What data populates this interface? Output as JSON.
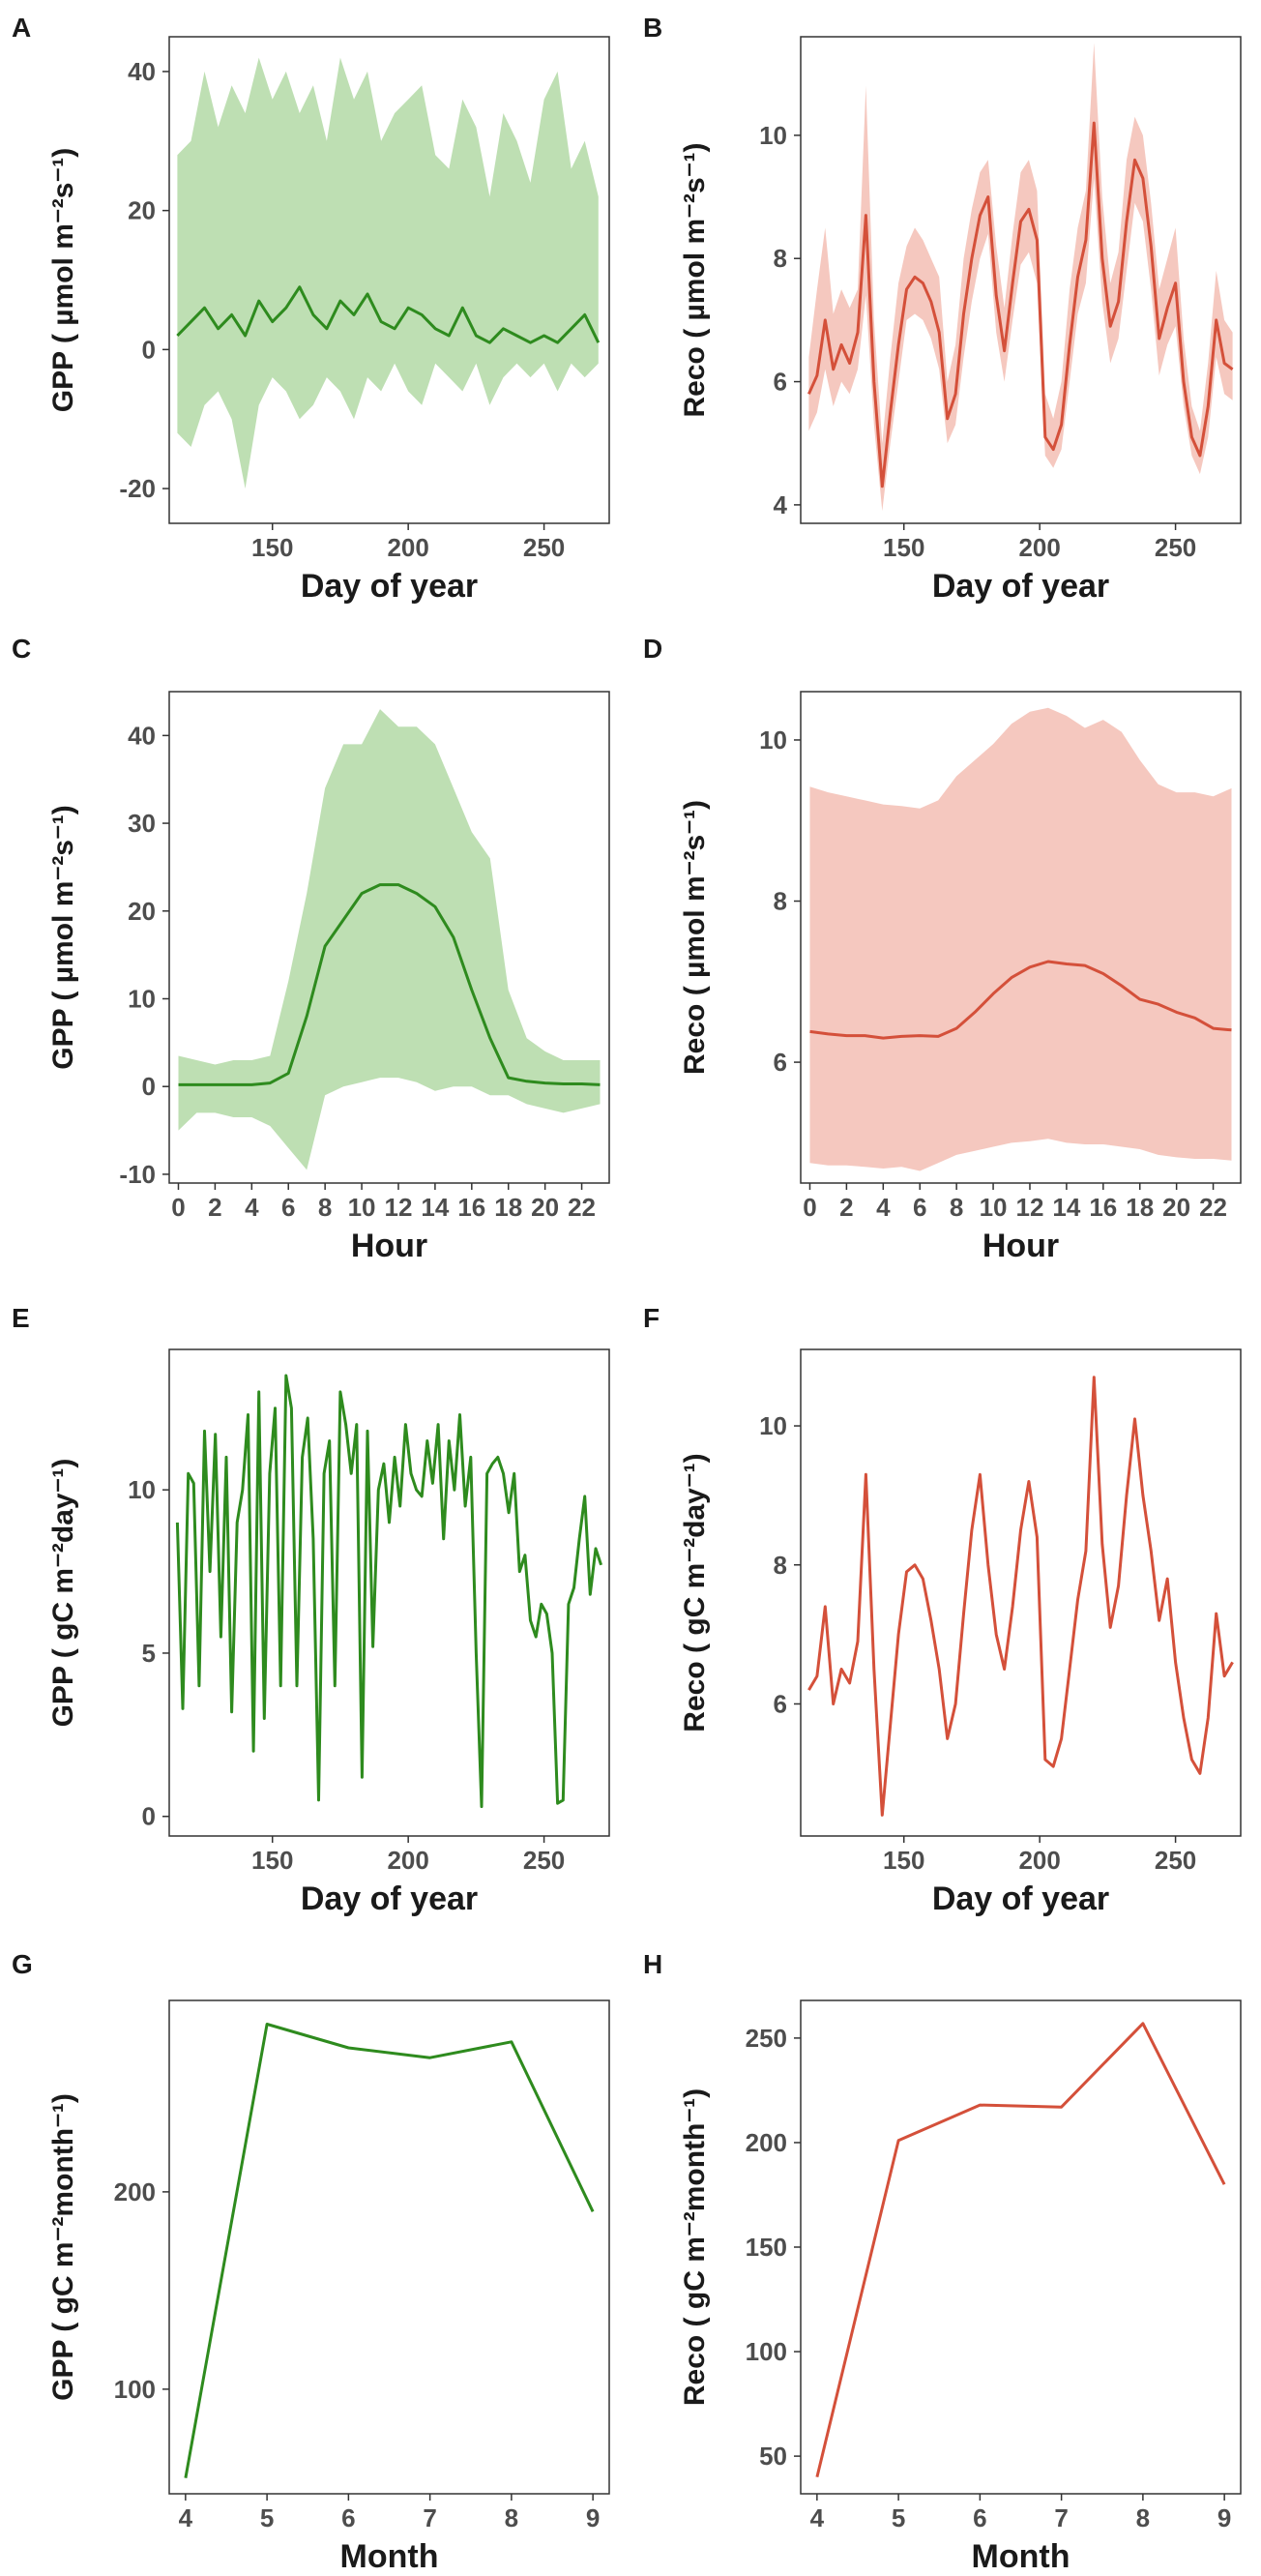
{
  "colors": {
    "gpp": "#2e8b1e",
    "gpp_band": "#a8d49a",
    "reco": "#d4503a",
    "reco_band": "#f2b6aa"
  },
  "chart_data": [
    {
      "panel": "A",
      "type": "line",
      "xlabel": "Day of year",
      "ylabel": "GPP ( µmol m⁻²s⁻¹)",
      "xlim": [
        112,
        274
      ],
      "ylim": [
        -25,
        45
      ],
      "xticks": [
        150,
        200,
        250
      ],
      "yticks": [
        -20,
        0,
        20,
        40
      ],
      "series_color": "gpp",
      "band_color": "gpp_band",
      "x": [
        115,
        120,
        125,
        130,
        135,
        140,
        145,
        150,
        155,
        160,
        165,
        170,
        175,
        180,
        185,
        190,
        195,
        200,
        205,
        210,
        215,
        220,
        225,
        230,
        235,
        240,
        245,
        250,
        255,
        260,
        265,
        270
      ],
      "y": [
        2,
        4,
        6,
        3,
        5,
        2,
        7,
        4,
        6,
        9,
        5,
        3,
        7,
        5,
        8,
        4,
        3,
        6,
        5,
        3,
        2,
        6,
        2,
        1,
        3,
        2,
        1,
        2,
        1,
        3,
        5,
        1
      ],
      "band_upper": [
        28,
        30,
        40,
        32,
        38,
        34,
        42,
        36,
        40,
        34,
        38,
        30,
        42,
        36,
        40,
        30,
        34,
        36,
        38,
        28,
        26,
        36,
        32,
        22,
        34,
        30,
        24,
        36,
        40,
        26,
        30,
        22
      ],
      "band_lower": [
        -12,
        -14,
        -8,
        -6,
        -10,
        -20,
        -8,
        -4,
        -6,
        -10,
        -8,
        -4,
        -6,
        -10,
        -4,
        -6,
        -2,
        -6,
        -8,
        -2,
        -4,
        -6,
        -2,
        -8,
        -4,
        -2,
        -4,
        -2,
        -6,
        -2,
        -4,
        -2
      ]
    },
    {
      "panel": "B",
      "type": "line",
      "xlabel": "Day of year",
      "ylabel": "Reco ( µmol m⁻²s⁻¹)",
      "xlim": [
        112,
        274
      ],
      "ylim": [
        3.7,
        11.6
      ],
      "xticks": [
        150,
        200,
        250
      ],
      "yticks": [
        4,
        6,
        8,
        10
      ],
      "series_color": "reco",
      "band_color": "reco_band",
      "x": [
        115,
        118,
        121,
        124,
        127,
        130,
        133,
        136,
        139,
        142,
        145,
        148,
        151,
        154,
        157,
        160,
        163,
        166,
        169,
        172,
        175,
        178,
        181,
        184,
        187,
        190,
        193,
        196,
        199,
        202,
        205,
        208,
        211,
        214,
        217,
        220,
        223,
        226,
        229,
        232,
        235,
        238,
        241,
        244,
        247,
        250,
        253,
        256,
        259,
        262,
        265,
        268,
        271
      ],
      "y": [
        5.8,
        6.1,
        7.0,
        6.2,
        6.6,
        6.3,
        6.8,
        8.7,
        6.0,
        4.3,
        5.5,
        6.6,
        7.5,
        7.7,
        7.6,
        7.3,
        6.8,
        5.4,
        5.8,
        7.1,
        8.0,
        8.7,
        9.0,
        7.4,
        6.5,
        7.6,
        8.6,
        8.8,
        8.3,
        5.1,
        4.9,
        5.3,
        6.6,
        7.7,
        8.3,
        10.2,
        8.0,
        6.9,
        7.3,
        8.6,
        9.6,
        9.3,
        8.2,
        6.7,
        7.2,
        7.6,
        6.0,
        5.1,
        4.8,
        5.6,
        7.0,
        6.3,
        6.2
      ],
      "band_upper": [
        6.4,
        7.5,
        8.5,
        7.1,
        7.5,
        7.2,
        7.5,
        10.8,
        7.0,
        5.0,
        6.4,
        7.6,
        8.2,
        8.5,
        8.3,
        8.0,
        7.7,
        6.0,
        6.6,
        8.0,
        8.8,
        9.4,
        9.6,
        8.2,
        7.2,
        8.4,
        9.4,
        9.6,
        9.1,
        5.8,
        5.4,
        6.0,
        7.5,
        8.5,
        9.1,
        11.5,
        9.0,
        7.6,
        8.1,
        9.6,
        10.3,
        10.0,
        8.9,
        7.5,
        8.0,
        8.5,
        6.7,
        5.6,
        5.2,
        6.3,
        7.8,
        7.0,
        6.8
      ],
      "band_lower": [
        5.2,
        5.5,
        6.2,
        5.6,
        6.0,
        5.8,
        6.2,
        7.4,
        5.3,
        3.9,
        5.0,
        6.0,
        7.0,
        7.1,
        7.0,
        6.7,
        6.2,
        5.0,
        5.3,
        6.4,
        7.3,
        8.0,
        8.4,
        6.8,
        6.0,
        7.0,
        7.9,
        8.1,
        7.6,
        4.8,
        4.6,
        4.9,
        6.0,
        7.1,
        7.6,
        9.3,
        7.3,
        6.3,
        6.7,
        7.8,
        8.9,
        8.6,
        7.5,
        6.1,
        6.6,
        6.9,
        5.6,
        4.8,
        4.5,
        5.1,
        6.4,
        5.8,
        5.7
      ]
    },
    {
      "panel": "C",
      "type": "line",
      "xlabel": "Hour",
      "ylabel": "GPP ( µmol m⁻²s⁻¹)",
      "xlim": [
        -0.5,
        23.5
      ],
      "ylim": [
        -11,
        45
      ],
      "xticks": [
        0,
        2,
        4,
        6,
        8,
        10,
        12,
        14,
        16,
        18,
        20,
        22
      ],
      "yticks": [
        -10,
        0,
        10,
        20,
        30,
        40
      ],
      "series_color": "gpp",
      "band_color": "gpp_band",
      "x": [
        0,
        1,
        2,
        3,
        4,
        5,
        6,
        7,
        8,
        9,
        10,
        11,
        12,
        13,
        14,
        15,
        16,
        17,
        18,
        19,
        20,
        21,
        22,
        23
      ],
      "y": [
        0.2,
        0.2,
        0.2,
        0.2,
        0.2,
        0.4,
        1.5,
        8,
        16,
        19,
        22,
        23,
        23,
        22,
        20.5,
        17,
        11,
        5.5,
        1,
        0.6,
        0.4,
        0.3,
        0.3,
        0.2
      ],
      "band_upper": [
        3.5,
        3,
        2.5,
        3,
        3,
        3.5,
        12,
        22,
        34,
        39,
        39,
        43,
        41,
        41,
        39,
        34,
        29,
        26,
        11,
        5.5,
        4,
        3,
        3,
        3
      ],
      "band_lower": [
        -5,
        -3,
        -3,
        -3.5,
        -3.5,
        -4.5,
        -7,
        -9.5,
        -1,
        0,
        0.5,
        1,
        1,
        0.5,
        -0.5,
        0,
        0,
        -1,
        -1,
        -2,
        -2.5,
        -3,
        -2.5,
        -2
      ]
    },
    {
      "panel": "D",
      "type": "line",
      "xlabel": "Hour",
      "ylabel": "Reco ( µmol m⁻²s⁻¹)",
      "xlim": [
        -0.5,
        23.5
      ],
      "ylim": [
        4.5,
        10.6
      ],
      "xticks": [
        0,
        2,
        4,
        6,
        8,
        10,
        12,
        14,
        16,
        18,
        20,
        22
      ],
      "yticks": [
        6,
        8,
        10
      ],
      "series_color": "reco",
      "band_color": "reco_band",
      "x": [
        0,
        1,
        2,
        3,
        4,
        5,
        6,
        7,
        8,
        9,
        10,
        11,
        12,
        13,
        14,
        15,
        16,
        17,
        18,
        19,
        20,
        21,
        22,
        23
      ],
      "y": [
        6.38,
        6.35,
        6.33,
        6.33,
        6.3,
        6.32,
        6.33,
        6.32,
        6.42,
        6.62,
        6.85,
        7.05,
        7.18,
        7.25,
        7.22,
        7.2,
        7.1,
        6.95,
        6.78,
        6.72,
        6.62,
        6.55,
        6.42,
        6.4
      ],
      "band_upper": [
        9.42,
        9.35,
        9.3,
        9.25,
        9.2,
        9.18,
        9.15,
        9.25,
        9.55,
        9.75,
        9.95,
        10.2,
        10.35,
        10.4,
        10.3,
        10.15,
        10.25,
        10.1,
        9.75,
        9.45,
        9.35,
        9.35,
        9.3,
        9.4
      ],
      "band_lower": [
        4.75,
        4.72,
        4.72,
        4.7,
        4.68,
        4.7,
        4.65,
        4.75,
        4.85,
        4.9,
        4.95,
        5.0,
        5.02,
        5.05,
        5.0,
        4.98,
        4.98,
        4.95,
        4.92,
        4.85,
        4.82,
        4.8,
        4.8,
        4.78
      ]
    },
    {
      "panel": "E",
      "type": "line",
      "xlabel": "Day of year",
      "ylabel": "GPP ( gC m⁻²day⁻¹)",
      "xlim": [
        112,
        274
      ],
      "ylim": [
        -0.6,
        14.3
      ],
      "xticks": [
        150,
        200,
        250
      ],
      "yticks": [
        0,
        5,
        10
      ],
      "series_color": "gpp",
      "x": [
        115,
        117,
        119,
        121,
        123,
        125,
        127,
        129,
        131,
        133,
        135,
        137,
        139,
        141,
        143,
        145,
        147,
        149,
        151,
        153,
        155,
        157,
        159,
        161,
        163,
        165,
        167,
        169,
        171,
        173,
        175,
        177,
        179,
        181,
        183,
        185,
        187,
        189,
        191,
        193,
        195,
        197,
        199,
        201,
        203,
        205,
        207,
        209,
        211,
        213,
        215,
        217,
        219,
        221,
        223,
        225,
        227,
        229,
        231,
        233,
        235,
        237,
        239,
        241,
        243,
        245,
        247,
        249,
        251,
        253,
        255,
        257,
        259,
        261,
        263,
        265,
        267,
        269,
        271
      ],
      "y": [
        9,
        3.3,
        10.5,
        10.2,
        4,
        11.8,
        7.5,
        11.7,
        5.5,
        11,
        3.2,
        9,
        10,
        12.3,
        2,
        13,
        3,
        10.5,
        12.5,
        4,
        13.5,
        12.5,
        4,
        11,
        12.2,
        8.5,
        0.5,
        10.5,
        11.5,
        4,
        13,
        12,
        10.5,
        12,
        1.2,
        11.8,
        5.2,
        10,
        10.8,
        9,
        11,
        9.5,
        12,
        10.5,
        10,
        9.8,
        11.5,
        10.2,
        12,
        8.5,
        11.5,
        10,
        12.3,
        9.5,
        11,
        5,
        0.3,
        10.5,
        10.8,
        11,
        10.5,
        9.3,
        10.5,
        7.5,
        8,
        6,
        5.5,
        6.5,
        6.2,
        5,
        0.4,
        0.5,
        6.5,
        7,
        8.5,
        9.8,
        6.8,
        8.2,
        7.7
      ]
    },
    {
      "panel": "F",
      "type": "line",
      "xlabel": "Day of year",
      "ylabel": "Reco ( gC m⁻²day⁻¹)",
      "xlim": [
        112,
        274
      ],
      "ylim": [
        4.1,
        11.1
      ],
      "xticks": [
        150,
        200,
        250
      ],
      "yticks": [
        6,
        8,
        10
      ],
      "series_color": "reco",
      "x": [
        115,
        118,
        121,
        124,
        127,
        130,
        133,
        136,
        139,
        142,
        145,
        148,
        151,
        154,
        157,
        160,
        163,
        166,
        169,
        172,
        175,
        178,
        181,
        184,
        187,
        190,
        193,
        196,
        199,
        202,
        205,
        208,
        211,
        214,
        217,
        220,
        223,
        226,
        229,
        232,
        235,
        238,
        241,
        244,
        247,
        250,
        253,
        256,
        259,
        262,
        265,
        268,
        271
      ],
      "y": [
        6.2,
        6.4,
        7.4,
        6.0,
        6.5,
        6.3,
        6.9,
        9.3,
        6.5,
        4.4,
        5.7,
        7.0,
        7.9,
        8.0,
        7.8,
        7.2,
        6.5,
        5.5,
        6.0,
        7.3,
        8.5,
        9.3,
        8.0,
        7.0,
        6.5,
        7.4,
        8.5,
        9.2,
        8.4,
        5.2,
        5.1,
        5.5,
        6.5,
        7.5,
        8.2,
        10.7,
        8.3,
        7.1,
        7.7,
        9.0,
        10.1,
        9.0,
        8.2,
        7.2,
        7.8,
        6.6,
        5.8,
        5.2,
        5.0,
        5.8,
        7.3,
        6.4,
        6.6
      ]
    },
    {
      "panel": "G",
      "type": "line",
      "xlabel": "Month",
      "ylabel": "GPP ( gC m⁻²month⁻¹)",
      "xlim": [
        3.8,
        9.2
      ],
      "ylim": [
        47,
        297
      ],
      "xticks": [
        4,
        5,
        6,
        7,
        8,
        9
      ],
      "yticks": [
        100,
        200
      ],
      "series_color": "gpp",
      "x": [
        4,
        5,
        6,
        7,
        8,
        9
      ],
      "y": [
        55,
        285,
        273,
        268,
        276,
        190
      ]
    },
    {
      "panel": "H",
      "type": "line",
      "xlabel": "Month",
      "ylabel": "Reco ( gC m⁻²month⁻¹)",
      "xlim": [
        3.8,
        9.2
      ],
      "ylim": [
        32,
        268
      ],
      "xticks": [
        4,
        5,
        6,
        7,
        8,
        9
      ],
      "yticks": [
        50,
        100,
        150,
        200,
        250
      ],
      "series_color": "reco",
      "x": [
        4,
        5,
        6,
        7,
        8,
        9
      ],
      "y": [
        40,
        201,
        218,
        217,
        257,
        180
      ]
    }
  ]
}
